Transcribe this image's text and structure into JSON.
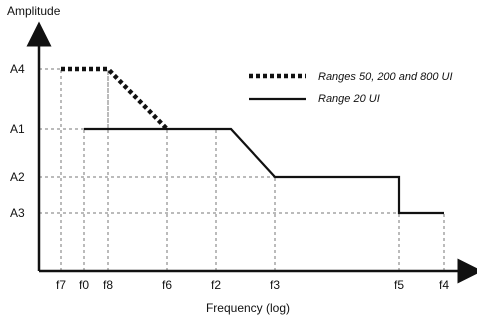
{
  "chart_data": {
    "type": "line",
    "title": "",
    "xlabel": "Frequency (log)",
    "ylabel": "Amplitude",
    "xscale": "log",
    "grid": "dashed guides at marked frequencies and amplitudes",
    "legend_position": "top-right",
    "y_levels": [
      "A4",
      "A1",
      "A2",
      "A3"
    ],
    "x_ticks": [
      "f7",
      "f0",
      "f8",
      "f6",
      "f2",
      "f3",
      "f5",
      "f4"
    ],
    "series": [
      {
        "name": "Ranges 50, 200 and 800 UI",
        "style": "dotted-thick",
        "color": "#111111",
        "points": [
          {
            "x": "f7",
            "y": "A4"
          },
          {
            "x": "f8",
            "y": "A4"
          },
          {
            "x": "f6",
            "y": "A1"
          }
        ]
      },
      {
        "name": "Range 20 UI",
        "style": "solid",
        "color": "#111111",
        "points": [
          {
            "x": "f0",
            "y": "A1"
          },
          {
            "x": "f2-end",
            "y": "A1"
          },
          {
            "x": "f3",
            "y": "A2"
          },
          {
            "x": "f5",
            "y": "A2"
          },
          {
            "x": "f5",
            "y": "A3"
          },
          {
            "x": "f4",
            "y": "A3"
          }
        ]
      }
    ]
  }
}
